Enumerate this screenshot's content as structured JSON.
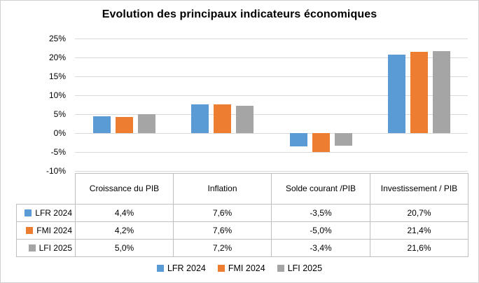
{
  "chart_title": "Evolution des principaux indicateurs économiques",
  "colors": {
    "series_blue": "#5B9BD5",
    "series_orange": "#ED7D31",
    "series_gray": "#A5A5A5",
    "gridline": "#D9D9D9",
    "table_border": "#BFBFBF",
    "frame_border": "#D2D0D0"
  },
  "chart_data": {
    "type": "bar",
    "title": "Evolution des principaux indicateurs économiques",
    "categories": [
      "Croissance du PIB",
      "Inflation",
      "Solde courant /PIB",
      "Investissement / PIB"
    ],
    "series": [
      {
        "name": "LFR 2024",
        "color": "#5B9BD5",
        "values": [
          4.4,
          7.6,
          -3.5,
          20.7
        ],
        "display": [
          "4,4%",
          "7,6%",
          "-3,5%",
          "20,7%"
        ]
      },
      {
        "name": "FMI 2024",
        "color": "#ED7D31",
        "values": [
          4.2,
          7.6,
          -5.0,
          21.4
        ],
        "display": [
          "4,2%",
          "7,6%",
          "-5,0%",
          "21,4%"
        ]
      },
      {
        "name": "LFI 2025",
        "color": "#A5A5A5",
        "values": [
          5.0,
          7.2,
          -3.4,
          21.6
        ],
        "display": [
          "5,0%",
          "7,2%",
          "-3,4%",
          "21,6%"
        ]
      }
    ],
    "y_axis": {
      "min": -10,
      "max": 25,
      "step": 5,
      "tick_labels": [
        "25%",
        "20%",
        "15%",
        "10%",
        "5%",
        "0%",
        "-5%",
        "-10%"
      ],
      "format": "percent"
    },
    "grid": true,
    "legend_position": "bottom",
    "legend_items": [
      "LFR 2024",
      "FMI 2024",
      "LFI 2025"
    ],
    "data_table_shown": true,
    "ylim": [
      -10,
      25
    ]
  }
}
